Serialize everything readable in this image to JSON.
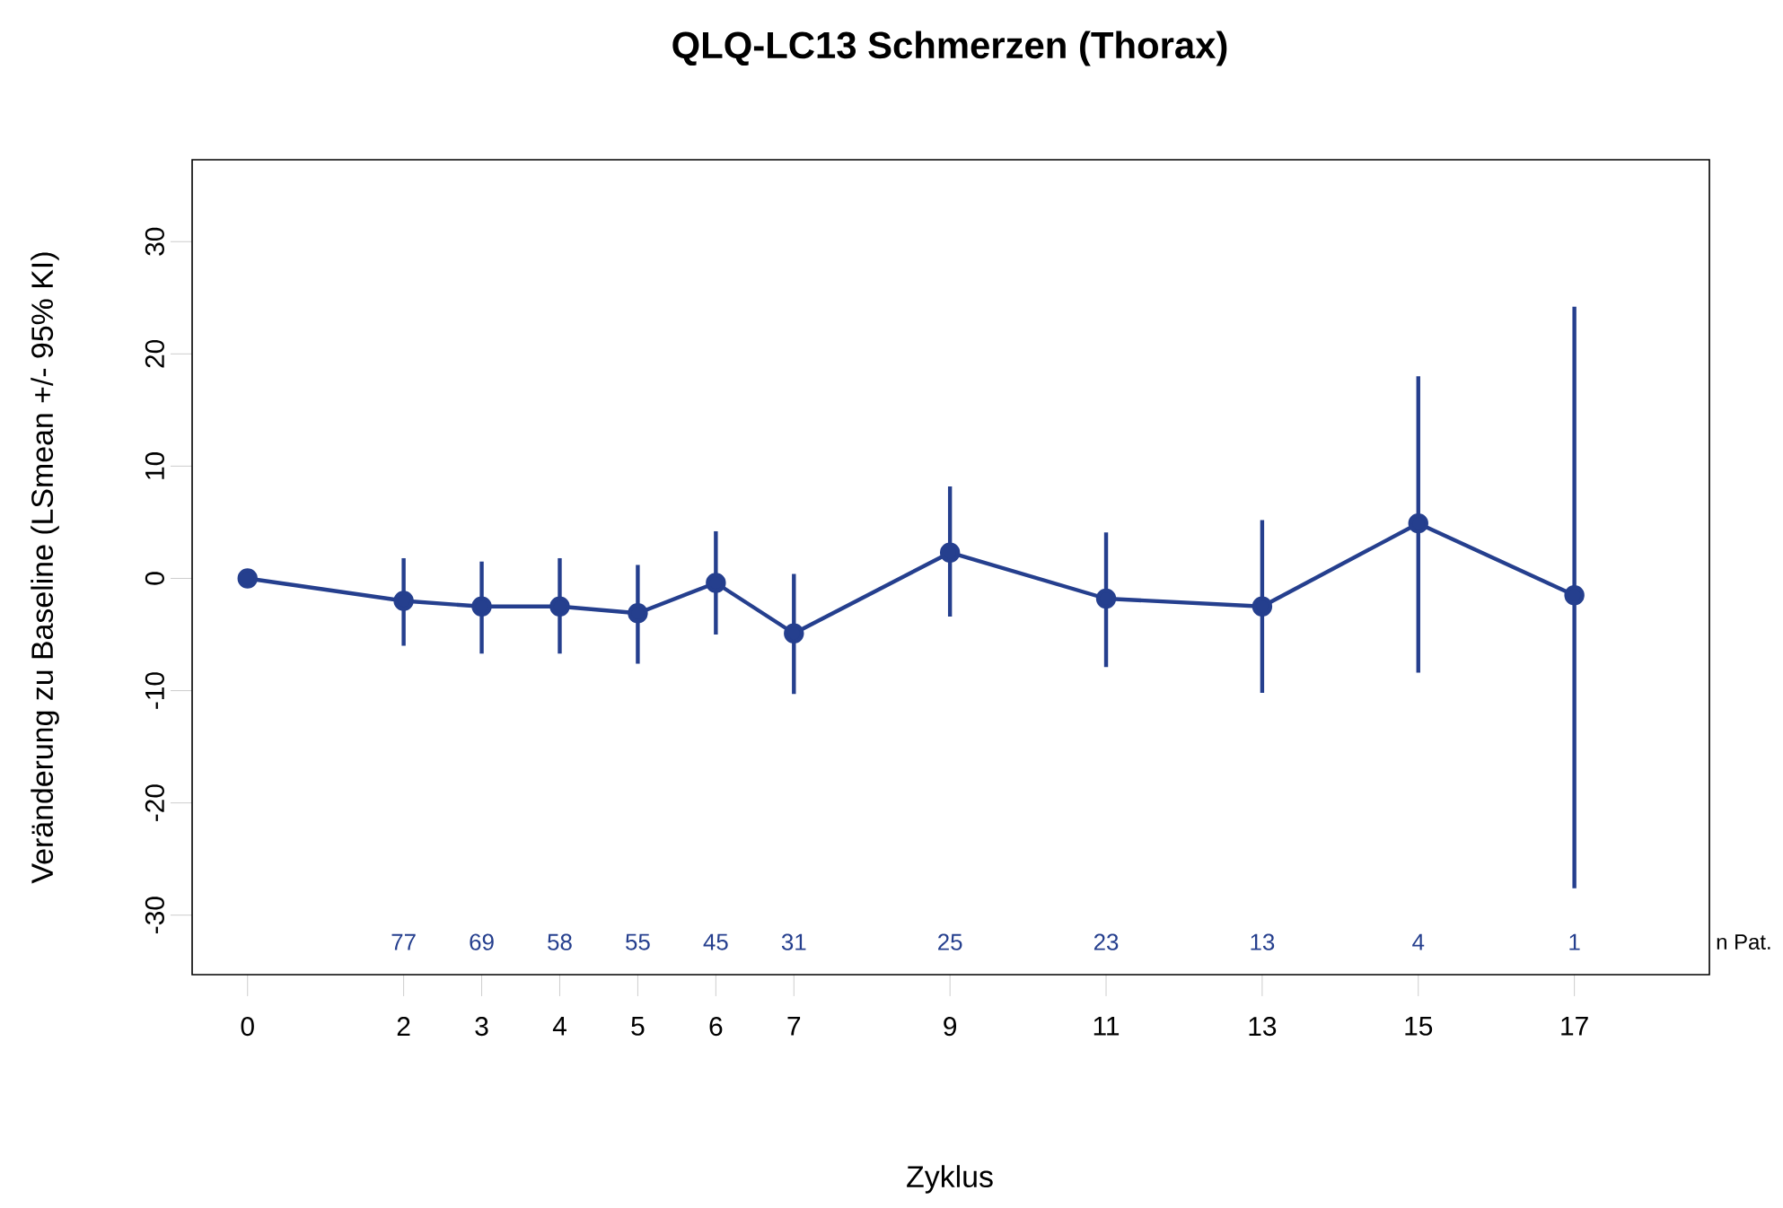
{
  "chart_data": {
    "type": "line",
    "title": "QLQ-LC13 Schmerzen (Thorax)",
    "xlabel": "Zyklus",
    "ylabel": "Veränderung zu Baseline (LSmean +/- 95% KI)",
    "x": [
      0,
      2,
      3,
      4,
      5,
      6,
      7,
      9,
      11,
      13,
      15,
      17
    ],
    "series": [
      {
        "color": "#253f8e",
        "values": [
          0,
          -2.0,
          -2.5,
          -2.5,
          -3.1,
          -0.4,
          -4.9,
          2.3,
          -1.8,
          -2.5,
          4.9,
          -1.5
        ],
        "errors": [
          null,
          [
            -6.0,
            1.8
          ],
          [
            -6.7,
            1.5
          ],
          [
            -6.7,
            1.8
          ],
          [
            -7.6,
            1.2
          ],
          [
            -5.0,
            4.2
          ],
          [
            -10.3,
            0.4
          ],
          [
            -3.4,
            8.2
          ],
          [
            -7.9,
            4.1
          ],
          [
            -10.2,
            5.2
          ],
          [
            -8.4,
            18.0
          ],
          [
            -27.6,
            24.2
          ]
        ]
      }
    ],
    "xlim": [
      -0.71,
      18.73
    ],
    "ylim": [
      -35.3,
      37.3
    ],
    "xticks": [
      0,
      2,
      3,
      4,
      5,
      6,
      7,
      9,
      11,
      13,
      15,
      17
    ],
    "yticks": [
      -30,
      -20,
      -10,
      0,
      10,
      20,
      30
    ],
    "marker": "circle",
    "line_style": "solid",
    "grid": false,
    "annotations": [
      "77",
      "69",
      "58",
      "55",
      "45",
      "31",
      "25",
      "23",
      "13",
      "4",
      "1",
      "n Pat."
    ]
  }
}
